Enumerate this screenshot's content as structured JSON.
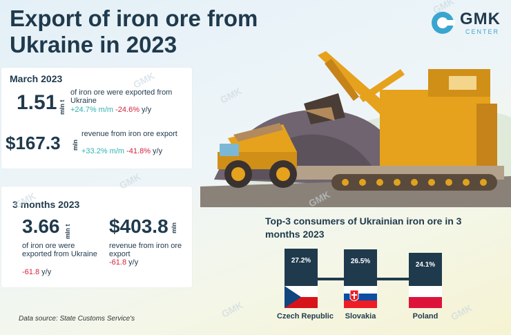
{
  "title": "Export of iron ore from Ukraine in 2023",
  "logo": {
    "name": "GMK",
    "sub": "CENTER"
  },
  "watermark": "GMK",
  "march": {
    "heading": "March 2023",
    "volume": {
      "value": "1.51",
      "unit": "mln t",
      "desc": "of iron ore were exported from Ukraine",
      "mm": "+24.7% m/m",
      "yy_value": "-24.6%",
      "yy_suffix": " y/y"
    },
    "revenue": {
      "value": "$167.3",
      "unit": "mln",
      "desc": "revenue from iron ore export",
      "mm": "+33.2% m/m",
      "yy_value": "-41.8%",
      "yy_suffix": " y/y"
    }
  },
  "three_months": {
    "heading": "3 months 2023",
    "volume": {
      "value": "3.66",
      "unit": "mln t",
      "desc": "of iron ore were exported from Ukraine",
      "yy_value": "-61.8",
      "yy_suffix": " y/y"
    },
    "revenue": {
      "value": "$403.8",
      "unit": "mln",
      "desc": "revenue from iron ore export",
      "yy_value": "-61.8",
      "yy_suffix": " y/y"
    }
  },
  "source": "Data source: State Customs Service's",
  "colors": {
    "navy": "#1f3a4c",
    "positive": "#2cb3b0",
    "negative": "#d4213d",
    "accent": "#3aa6cf"
  },
  "chart_data": {
    "type": "bar",
    "title": "Top-3 consumers of Ukrainian iron ore in 3 months 2023",
    "categories": [
      "Czech Republic",
      "Slovakia",
      "Poland"
    ],
    "values": [
      27.2,
      26.5,
      24.1
    ],
    "labels": [
      "27.2%",
      "26.5%",
      "24.1%"
    ],
    "unit": "%"
  }
}
